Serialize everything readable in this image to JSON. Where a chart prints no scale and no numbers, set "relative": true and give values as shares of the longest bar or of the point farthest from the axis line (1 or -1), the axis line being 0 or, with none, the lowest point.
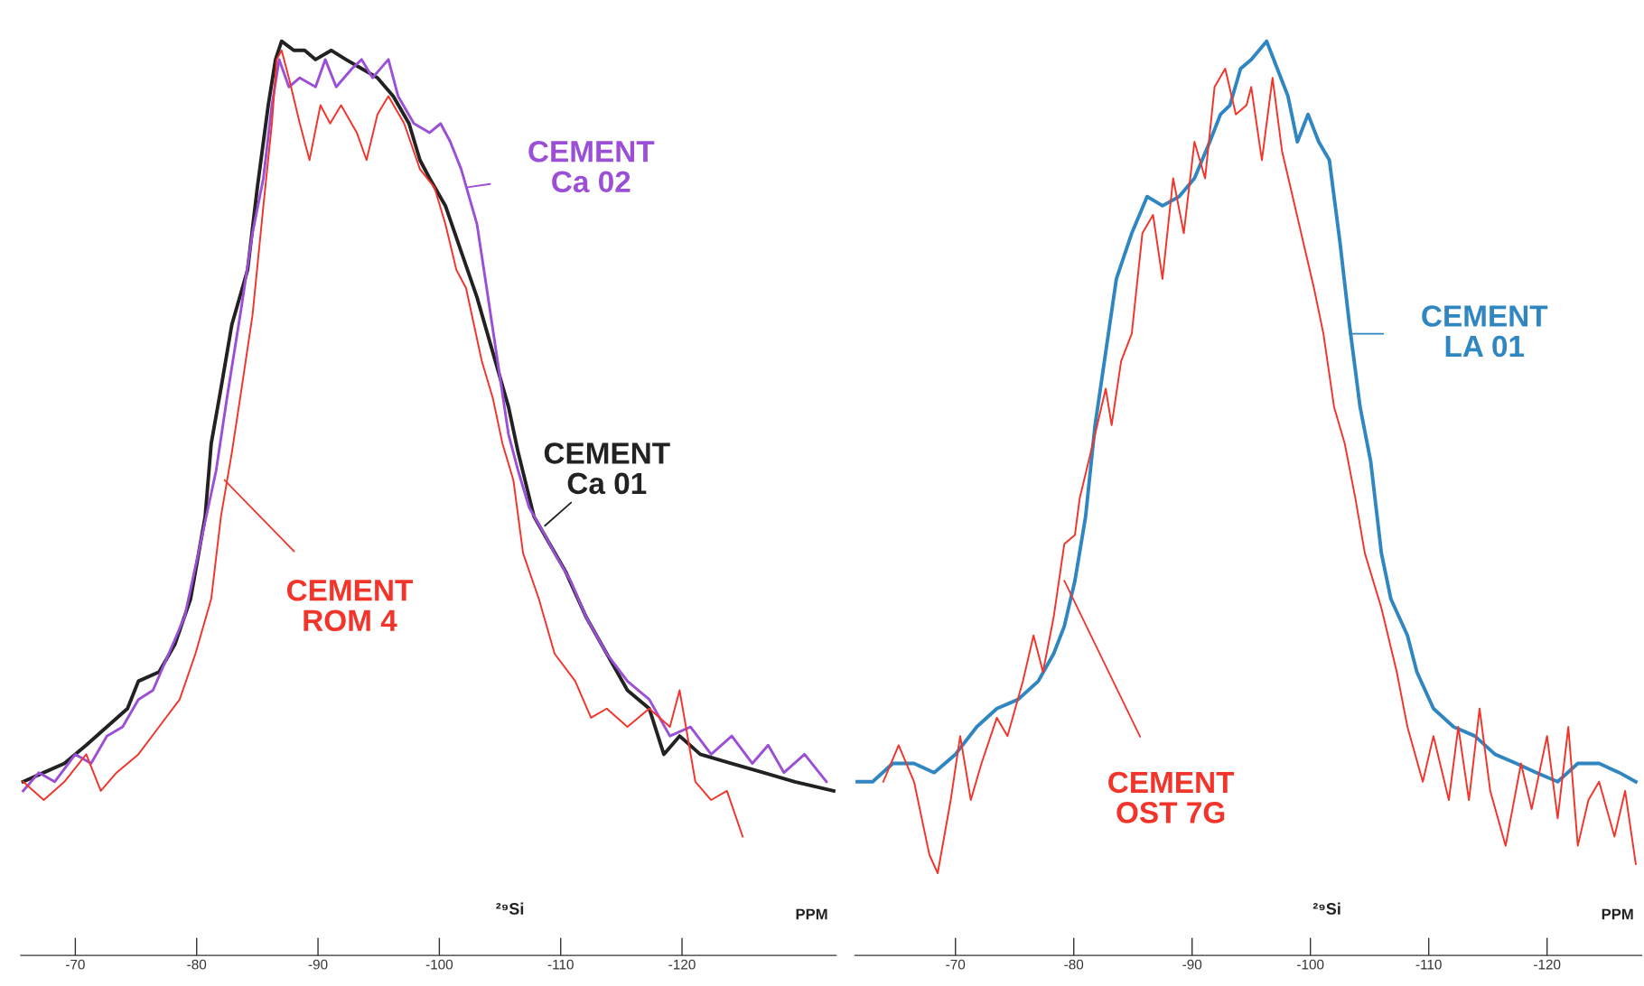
{
  "chart_data": [
    {
      "type": "line",
      "relative": true,
      "xlabel": "PPM",
      "annotations": [
        "²⁹Si"
      ],
      "xlim": [
        -65.5,
        -132.7
      ],
      "xticks": [
        -70,
        -80,
        -90,
        -100,
        -110,
        -120
      ],
      "series": [
        {
          "name": "CEMENT Ca 01",
          "color": "#222222",
          "x": [
            -65.7,
            -67.4,
            -69.1,
            -70.9,
            -72.6,
            -74.3,
            -75.2,
            -76.9,
            -78.2,
            -79.5,
            -80.7,
            -81.2,
            -82.0,
            -82.9,
            -84.2,
            -85.0,
            -85.9,
            -86.5,
            -87.0,
            -88.0,
            -88.9,
            -89.8,
            -91.1,
            -92.3,
            -93.6,
            -94.9,
            -96.2,
            -97.5,
            -98.4,
            -99.2,
            -100.5,
            -101.8,
            -103.1,
            -104.4,
            -105.7,
            -106.5,
            -107.8,
            -109.1,
            -110.4,
            -112.1,
            -113.8,
            -115.5,
            -117.3,
            -118.5,
            -119.8,
            -121.5,
            -124.1,
            -126.7,
            -129.3,
            -132.5
          ],
          "values": [
            0.19,
            0.2,
            0.21,
            0.23,
            0.25,
            0.27,
            0.3,
            0.31,
            0.34,
            0.39,
            0.48,
            0.56,
            0.62,
            0.69,
            0.75,
            0.84,
            0.93,
            0.98,
            1.0,
            0.99,
            0.99,
            0.98,
            0.99,
            0.98,
            0.97,
            0.96,
            0.94,
            0.91,
            0.87,
            0.85,
            0.82,
            0.77,
            0.72,
            0.66,
            0.6,
            0.55,
            0.48,
            0.45,
            0.42,
            0.37,
            0.33,
            0.29,
            0.27,
            0.22,
            0.24,
            0.22,
            0.21,
            0.2,
            0.19,
            0.18
          ]
        },
        {
          "name": "CEMENT Ca 02",
          "color": "#9b4fd6",
          "x": [
            -65.7,
            -67.0,
            -68.3,
            -70.0,
            -71.3,
            -72.6,
            -73.9,
            -75.2,
            -76.4,
            -77.7,
            -79.0,
            -80.3,
            -81.6,
            -82.5,
            -83.7,
            -84.6,
            -85.5,
            -86.2,
            -86.8,
            -87.6,
            -88.5,
            -89.8,
            -90.6,
            -91.5,
            -92.8,
            -93.6,
            -94.5,
            -95.8,
            -96.6,
            -97.9,
            -99.2,
            -100.1,
            -100.9,
            -101.8,
            -103.1,
            -103.9,
            -104.8,
            -105.7,
            -106.5,
            -107.4,
            -108.7,
            -109.5,
            -110.8,
            -112.1,
            -113.8,
            -115.5,
            -117.3,
            -119.0,
            -120.7,
            -122.4,
            -124.1,
            -125.8,
            -127.1,
            -128.4,
            -130.1,
            -131.9
          ],
          "values": [
            0.18,
            0.2,
            0.19,
            0.22,
            0.21,
            0.24,
            0.25,
            0.28,
            0.29,
            0.33,
            0.37,
            0.45,
            0.53,
            0.61,
            0.71,
            0.79,
            0.85,
            0.93,
            0.98,
            0.95,
            0.96,
            0.95,
            0.98,
            0.95,
            0.97,
            0.98,
            0.96,
            0.98,
            0.94,
            0.91,
            0.9,
            0.91,
            0.89,
            0.86,
            0.8,
            0.73,
            0.65,
            0.57,
            0.53,
            0.49,
            0.46,
            0.44,
            0.41,
            0.37,
            0.33,
            0.3,
            0.28,
            0.24,
            0.25,
            0.22,
            0.24,
            0.21,
            0.23,
            0.2,
            0.22,
            0.19
          ]
        },
        {
          "name": "CEMENT ROM 4",
          "color": "#f2342b",
          "x": [
            -65.7,
            -67.4,
            -69.1,
            -70.9,
            -72.1,
            -73.4,
            -75.2,
            -76.9,
            -78.6,
            -79.9,
            -81.2,
            -82.0,
            -82.9,
            -83.7,
            -84.6,
            -85.5,
            -86.2,
            -86.6,
            -87.0,
            -87.6,
            -88.5,
            -89.3,
            -90.2,
            -91.0,
            -91.9,
            -93.2,
            -94.0,
            -94.9,
            -95.8,
            -97.1,
            -98.4,
            -99.6,
            -100.5,
            -101.4,
            -102.2,
            -103.5,
            -104.4,
            -105.2,
            -106.1,
            -106.9,
            -108.2,
            -109.5,
            -111.2,
            -112.5,
            -113.8,
            -115.5,
            -117.3,
            -119.0,
            -119.8,
            -121.1,
            -122.4,
            -123.7,
            -125.0
          ],
          "values": [
            0.19,
            0.17,
            0.19,
            0.22,
            0.18,
            0.2,
            0.22,
            0.25,
            0.28,
            0.33,
            0.39,
            0.48,
            0.55,
            0.62,
            0.7,
            0.82,
            0.91,
            0.98,
            0.99,
            0.96,
            0.91,
            0.87,
            0.93,
            0.91,
            0.93,
            0.9,
            0.87,
            0.92,
            0.94,
            0.91,
            0.86,
            0.84,
            0.8,
            0.75,
            0.73,
            0.65,
            0.61,
            0.56,
            0.52,
            0.44,
            0.39,
            0.33,
            0.3,
            0.26,
            0.27,
            0.25,
            0.27,
            0.25,
            0.29,
            0.19,
            0.17,
            0.18,
            0.13
          ]
        }
      ]
    },
    {
      "type": "line",
      "relative": true,
      "xlabel": "PPM",
      "annotations": [
        "²⁹Si"
      ],
      "xlim": [
        -61.5,
        -128.0
      ],
      "xticks": [
        -70,
        -80,
        -90,
        -100,
        -110,
        -120
      ],
      "series": [
        {
          "name": "CEMENT LA 01",
          "color": "#2f86c0",
          "x": [
            -61.7,
            -63.0,
            -64.7,
            -66.5,
            -68.2,
            -70.0,
            -71.8,
            -73.5,
            -75.3,
            -77.0,
            -78.3,
            -79.2,
            -80.1,
            -81.0,
            -81.8,
            -82.7,
            -83.6,
            -84.9,
            -86.2,
            -87.5,
            -88.9,
            -90.2,
            -91.5,
            -92.4,
            -93.2,
            -94.1,
            -95.0,
            -96.3,
            -97.2,
            -98.1,
            -98.9,
            -99.8,
            -100.7,
            -101.6,
            -102.5,
            -103.3,
            -104.2,
            -105.1,
            -106.0,
            -106.8,
            -108.2,
            -109.0,
            -110.4,
            -112.1,
            -113.9,
            -115.6,
            -117.4,
            -119.1,
            -120.9,
            -122.6,
            -124.4,
            -126.1,
            -127.5
          ],
          "values": [
            0.19,
            0.19,
            0.21,
            0.21,
            0.2,
            0.22,
            0.25,
            0.27,
            0.28,
            0.3,
            0.33,
            0.36,
            0.41,
            0.48,
            0.58,
            0.66,
            0.74,
            0.79,
            0.83,
            0.82,
            0.83,
            0.85,
            0.89,
            0.92,
            0.93,
            0.97,
            0.98,
            1.0,
            0.97,
            0.94,
            0.89,
            0.92,
            0.89,
            0.87,
            0.78,
            0.69,
            0.6,
            0.54,
            0.44,
            0.39,
            0.35,
            0.31,
            0.27,
            0.25,
            0.24,
            0.22,
            0.21,
            0.2,
            0.19,
            0.21,
            0.21,
            0.2,
            0.19
          ]
        },
        {
          "name": "CEMENT OST 7G",
          "color": "#f2342b",
          "x": [
            -63.9,
            -65.2,
            -66.5,
            -67.8,
            -68.5,
            -69.6,
            -70.4,
            -71.3,
            -72.2,
            -73.5,
            -74.4,
            -75.7,
            -76.6,
            -77.4,
            -78.3,
            -79.2,
            -80.1,
            -80.5,
            -81.8,
            -82.7,
            -83.2,
            -84.0,
            -84.9,
            -85.8,
            -86.7,
            -87.5,
            -88.4,
            -89.3,
            -90.2,
            -91.1,
            -91.9,
            -92.8,
            -93.7,
            -94.6,
            -95.0,
            -95.9,
            -96.8,
            -97.6,
            -98.5,
            -99.4,
            -100.3,
            -101.1,
            -102.0,
            -102.9,
            -103.8,
            -104.6,
            -106.0,
            -107.3,
            -108.2,
            -109.5,
            -110.4,
            -111.7,
            -112.5,
            -113.4,
            -114.3,
            -115.2,
            -116.5,
            -117.8,
            -118.7,
            -120.0,
            -120.9,
            -121.8,
            -122.6,
            -123.5,
            -124.4,
            -125.7,
            -126.6,
            -127.5
          ],
          "values": [
            0.19,
            0.23,
            0.19,
            0.11,
            0.09,
            0.17,
            0.24,
            0.17,
            0.21,
            0.26,
            0.24,
            0.3,
            0.35,
            0.31,
            0.37,
            0.45,
            0.46,
            0.5,
            0.57,
            0.62,
            0.58,
            0.65,
            0.68,
            0.79,
            0.81,
            0.74,
            0.85,
            0.79,
            0.89,
            0.85,
            0.95,
            0.97,
            0.92,
            0.93,
            0.95,
            0.87,
            0.96,
            0.88,
            0.83,
            0.78,
            0.73,
            0.68,
            0.6,
            0.56,
            0.5,
            0.44,
            0.38,
            0.31,
            0.25,
            0.19,
            0.24,
            0.17,
            0.25,
            0.17,
            0.27,
            0.18,
            0.12,
            0.21,
            0.16,
            0.24,
            0.15,
            0.25,
            0.12,
            0.17,
            0.19,
            0.13,
            0.18,
            0.1
          ]
        }
      ]
    }
  ]
}
